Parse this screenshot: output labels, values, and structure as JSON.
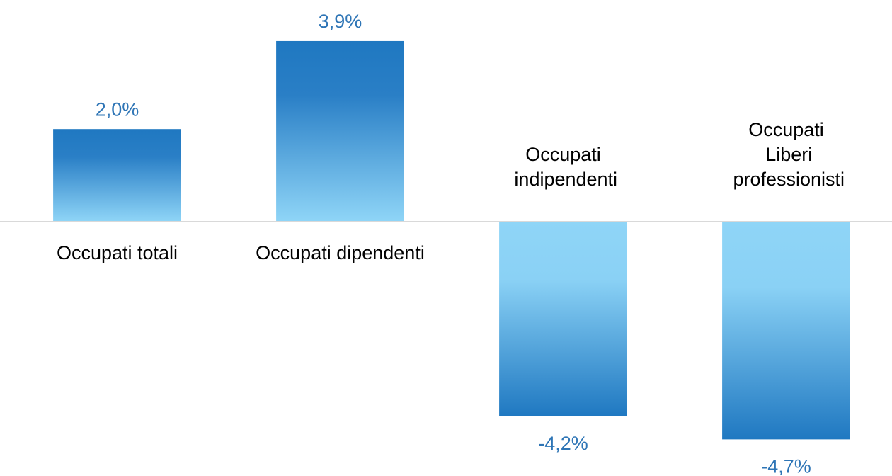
{
  "chart_data": {
    "type": "bar",
    "categories": [
      "Occupati totali",
      "Occupati dipendenti",
      "Occupati indipendenti",
      "Occupati Liberi professionisti"
    ],
    "values": [
      2.0,
      3.9,
      -4.2,
      -4.7
    ],
    "value_labels": [
      "2,0%",
      "3,9%",
      "-4,2%",
      "-4,7%"
    ],
    "color": "#1f78c1",
    "ylim": [
      -5,
      4
    ]
  }
}
